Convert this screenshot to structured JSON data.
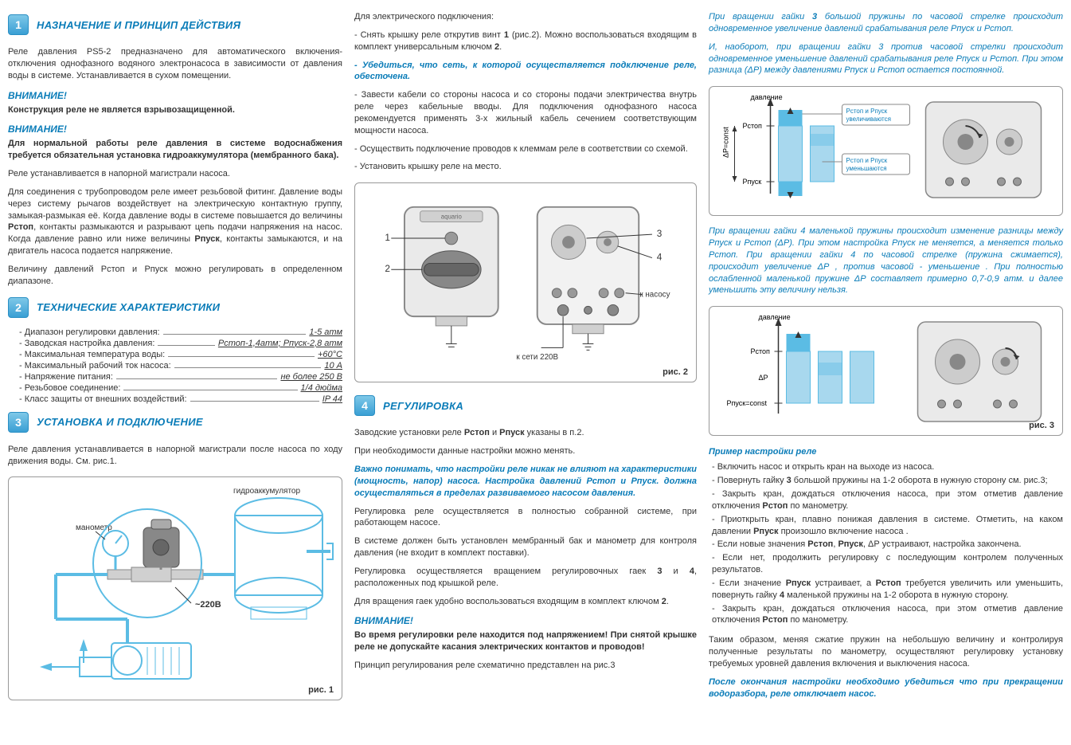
{
  "colors": {
    "accent": "#0a7cb8",
    "badge_top": "#7ec8e8",
    "badge_bot": "#3a9fd4",
    "text": "#333333",
    "border": "#999999",
    "diagram_blue": "#5bbce4",
    "diagram_cyan": "#a8d8ee",
    "device_gray": "#888888",
    "device_light": "#d0d0d0"
  },
  "s1": {
    "num": "1",
    "title": "НАЗНАЧЕНИЕ И ПРИНЦИП ДЕЙСТВИЯ",
    "p1": "Реле давления PS5-2 предназначено для автоматического включения-отключения однофазного водяного электронасоса в зависимости от давления воды в системе. Устанавливается в сухом помещении.",
    "warn1": "ВНИМАНИЕ!",
    "warn1_text": "Конструкция реле не является взрывозащищенной.",
    "warn2": "ВНИМАНИЕ!",
    "warn2_text": "Для нормальной работы реле давления в системе водоснабжения требуется обязательная установка гидроаккумулятора (мембранного бака).",
    "p2": "Реле устанавливается в напорной магистрали насоса.",
    "p3a": "Для соединения с трубопроводом реле имеет резьбовой фитинг. Давление воды через систему рычагов воздействует на электрическую контактную группу, замыкая-размыкая её. Когда давление воды в системе повышается до величины ",
    "p3_pstop": "Рстоп",
    "p3b": ", контакты размыкаются и разрывают цепь подачи напряжения на насос. Когда давление равно или ниже величины ",
    "p3_ppusk": "Рпуск",
    "p3c": ", контакты замыкаются, и на двигатель насоса подается напряжение.",
    "p4": "Величину давлений Рстоп и Рпуск можно регулировать в определенном диапазоне."
  },
  "s2": {
    "num": "2",
    "title": "ТЕХНИЧЕСКИЕ ХАРАКТЕРИСТИКИ",
    "specs": [
      {
        "label": "- Диапазон регулировки давления:",
        "val": "1-5 атм"
      },
      {
        "label": "- Заводская настройка давления:",
        "val": "Рстоп-1,4атм; Рпуск-2,8 атм"
      },
      {
        "label": "- Максимальная температура воды:",
        "val": "+60°C"
      },
      {
        "label": "- Максимальный рабочий ток насоса:",
        "val": "10 А"
      },
      {
        "label": "- Напряжение питания:",
        "val": "не более 250 В"
      },
      {
        "label": "- Резьбовое соединение:",
        "val": "1/4 дюйма"
      },
      {
        "label": "- Класс защиты от внешних воздействий:",
        "val": "IP 44"
      }
    ]
  },
  "s3": {
    "num": "3",
    "title": "УСТАНОВКА И ПОДКЛЮЧЕНИЕ",
    "p1": "Реле давления устанавливается в напорной магистрали после насоса по ходу движения воды. См. рис.1.",
    "fig1": {
      "caption": "рис. 1",
      "label_manometer": "манометр",
      "label_accumulator": "гидроаккумулятор",
      "label_voltage": "~220В"
    }
  },
  "col2_top": {
    "p1": "Для электрического подключения:",
    "p2a": "- Снять крышку реле открутив винт ",
    "p2_1": "1",
    "p2b": " (рис.2). Можно воспользоваться входящим в комплект универсальным ключом ",
    "p2_2": "2",
    "p2c": ".",
    "p3": "- Убедиться, что сеть, к которой осуществляется подключение реле, обесточена.",
    "p4": "- Завести кабели со стороны насоса и со стороны подачи электричества внутрь реле через кабельные вводы. Для подключения однофазного насоса рекомендуется применять 3-х жильный кабель сечением соответствующим мощности насоса.",
    "p5": "- Осуществить подключение проводов к клеммам реле в соответствии со схемой.",
    "p6": "- Установить крышку реле на место."
  },
  "fig2": {
    "caption": "рис. 2",
    "label_1": "1",
    "label_2": "2",
    "label_3": "3",
    "label_4": "4",
    "label_pump": "к насосу",
    "label_power": "к сети 220В",
    "brand": "aquario"
  },
  "s4": {
    "num": "4",
    "title": "РЕГУЛИРОВКА",
    "p1a": "Заводские установки реле ",
    "p1_pstop": "Рстоп",
    "p1b": " и ",
    "p1_ppusk": "Рпуск",
    "p1c": " указаны в п.2.",
    "p2": "При необходимости данные настройки можно менять.",
    "p3": "Важно понимать, что настройки реле никак не влияют на характеристики (мощность, напор) насоса. Настройка давлений Рстоп и Рпуск. должна осуществляться в пределах развиваемого насосом давления.",
    "p4": "Регулировка реле осуществляется в полностью собранной системе, при работающем насосе.",
    "p5": "В системе должен быть установлен мембранный бак и манометр для контроля давления (не входит в комплект поставки).",
    "p6a": "Регулировка осуществляется вращением регулировочных гаек ",
    "p6_3": "3",
    "p6b": " и ",
    "p6_4": "4",
    "p6c": ", расположенных под крышкой реле.",
    "p7a": "Для вращения гаек удобно воспользоваться входящим в комплект ключом ",
    "p7_2": "2",
    "p7b": ".",
    "warn": "ВНИМАНИЕ!",
    "warn_text": "Во время регулировки реле находится под напряжением! При снятой крышке реле не допускайте касания электрических контактов и проводов!",
    "p8": "Принцип регулирования реле схематично представлен на рис.3"
  },
  "col3_top": {
    "p1a": "При вращении гайки ",
    "p1_3": "3",
    "p1b": " большой пружины по часовой стрелке происходит одновременное увеличение давлений срабатывания реле Рпуск и Рстоп.",
    "p2": "И, наоборот, при вращении гайки 3 против часовой стрелки происходит одновременное уменьшение давлений срабатывания реле Рпуск и Рстоп. При этом разница (ΔР) между давлениями Рпуск и Рстоп остается постоянной."
  },
  "fig3a": {
    "label_pressure": "давление",
    "label_pstop": "Рстоп",
    "label_dp": "ΔР=const",
    "label_ppusk": "Рпуск",
    "box1": "Рстоп и Рпуск увеличиваются",
    "box2": "Рстоп и Рпуск уменьшаются"
  },
  "col3_mid": {
    "p1": "При вращении гайки 4 маленькой пружины происходит изменение разницы между Рпуск и Рстоп (ΔР). При этом настройка Рпуск не меняется, а меняется только Рстоп. При вращении гайки 4 по часовой стрелке (пружина сжимается), происходит увеличение ΔР , против часовой - уменьшение . При полностью ослабленной маленькой пружине ΔР составляет примерно 0,7-0,9 атм. и далее уменьшить эту величину нельзя."
  },
  "fig3b": {
    "caption": "рис. 3",
    "label_pressure": "давление",
    "label_pstop": "Рстоп",
    "label_dp": "ΔР",
    "label_ppusk": "Рпуск=const"
  },
  "example": {
    "title": "Пример настройки реле",
    "items": [
      "- Включить насос и открыть кран на выходе из насоса.",
      "- Повернуть гайку 3 большой пружины на 1-2 оборота в нужную сторону см. рис.3;",
      "- Закрыть кран, дождаться отключения насоса, при этом отметив давление отключения Рстоп по манометру.",
      "- Приоткрыть кран, плавно понижая давления в системе. Отметить, на каком давлении Рпуск произошло включение насоса .",
      "- Если новые значения Рстоп, Рпуск, ΔР устраивают, настройка закончена.",
      "- Если нет, продолжить регулировку с последующим контролем полученных результатов.",
      "- Если значение Рпуск устраивает, а Рстоп требуется увеличить или уменьшить, повернуть гайку 4 маленькой пружины на 1-2 оборота в нужную сторону.",
      "- Закрыть кран, дождаться отключения насоса, при этом отметив давление отключения Рстоп по манометру."
    ],
    "p_end": "Таким образом, меняя сжатие пружин на небольшую величину и контролируя полученные результаты по манометру, осуществляют регулировку установку требуемых уровней давления включения и выключения насоса.",
    "p_final": "После окончания настройки необходимо убедиться что при прекращении водоразбора, реле отключает насос."
  }
}
